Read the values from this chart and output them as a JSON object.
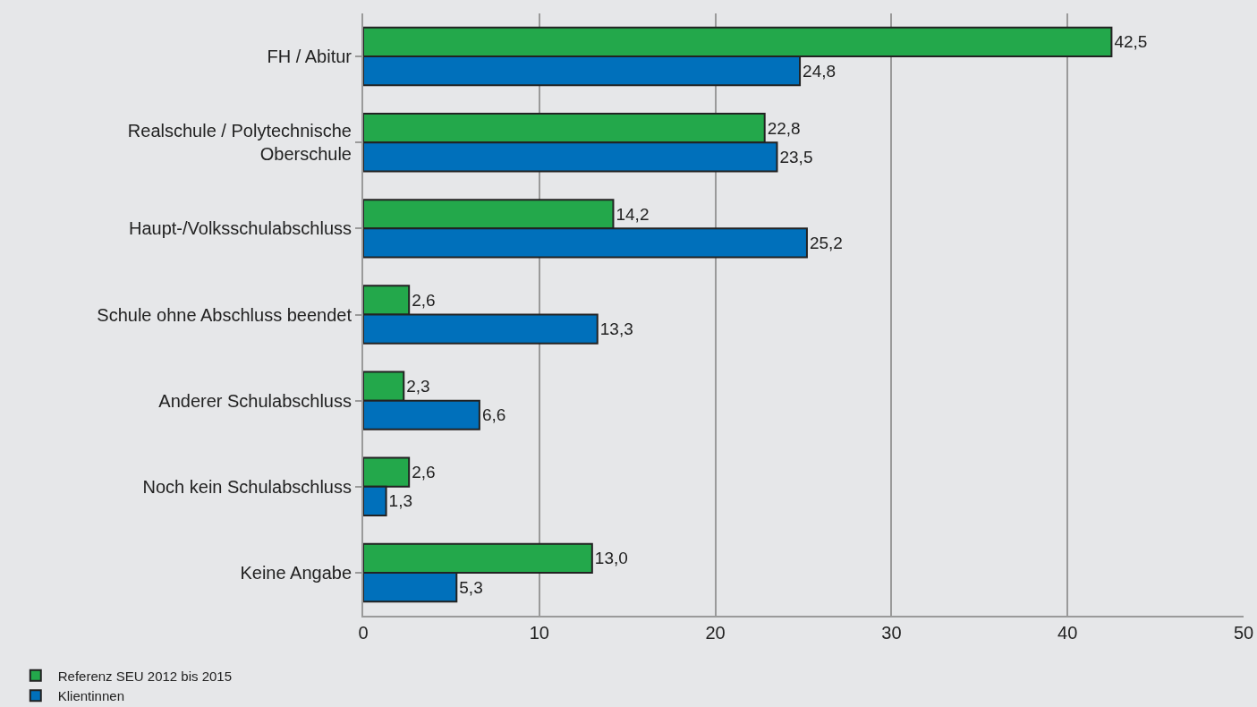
{
  "chart_data": {
    "type": "bar",
    "orientation": "horizontal",
    "categories": [
      "FH / Abitur",
      "Realschule / Polytechnische Oberschule",
      "Haupt-/Volksschulabschluss",
      "Schule ohne Abschluss beendet",
      "Anderer Schulabschluss",
      "Noch kein Schulabschluss",
      "Keine Angabe"
    ],
    "series": [
      {
        "name": "Referenz SEU 2012 bis 2015",
        "color": "#23a84b",
        "values": [
          42.5,
          22.8,
          14.2,
          2.6,
          2.3,
          2.6,
          13.0
        ],
        "value_labels": [
          "42,5",
          "22,8",
          "14,2",
          "2,6",
          "2,3",
          "2,6",
          "13,0"
        ]
      },
      {
        "name": "Klientinnen",
        "color": "#0070bb",
        "values": [
          24.8,
          23.5,
          25.2,
          13.3,
          6.6,
          1.3,
          5.3
        ],
        "value_labels": [
          "24,8",
          "23,5",
          "25,2",
          "13,3",
          "6,6",
          "1,3",
          "5,3"
        ]
      }
    ],
    "xlim": [
      0,
      50
    ],
    "xticks": [
      0,
      10,
      20,
      30,
      40,
      50
    ],
    "grid": "x",
    "legend": "bottom left"
  }
}
